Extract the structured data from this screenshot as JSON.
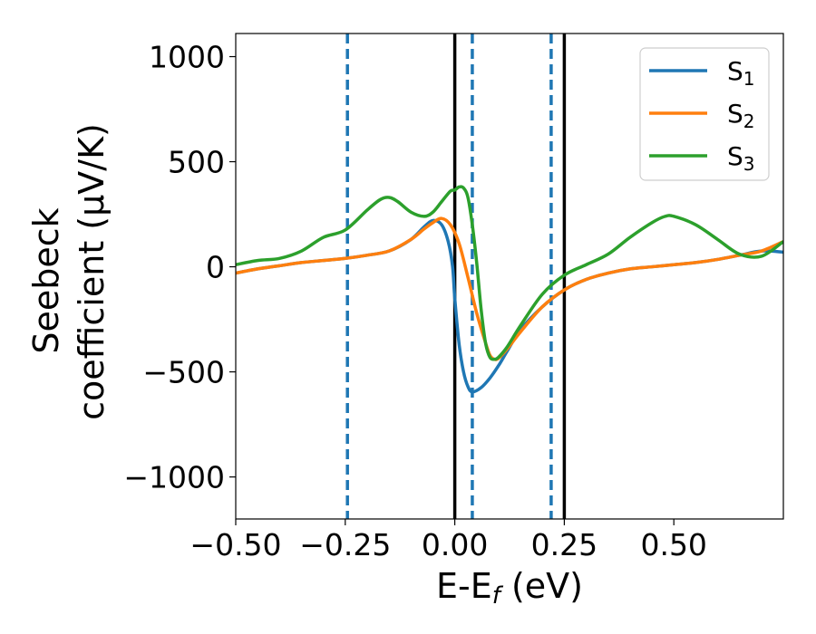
{
  "chart_data": {
    "type": "line",
    "xlabel": {
      "main": "E-E",
      "sub": "f",
      "tail": " (eV)"
    },
    "ylabel": {
      "line1": "Seebeck",
      "line2": "coefficient  (μV/K)"
    },
    "xlim": [
      -0.5,
      0.75
    ],
    "ylim": [
      -1200,
      1110
    ],
    "xticks": [
      -0.5,
      -0.25,
      0.0,
      0.25,
      0.5
    ],
    "xtick_labels": [
      "−0.50",
      "−0.25",
      "0.00",
      "0.25",
      "0.50"
    ],
    "yticks": [
      -1000,
      -500,
      0,
      500,
      1000
    ],
    "ytick_labels": [
      "−1000",
      "−500",
      "0",
      "500",
      "1000"
    ],
    "grid": false,
    "legend": {
      "placement": "top-right"
    },
    "vlines_solid": {
      "color": "#000000",
      "x": [
        0.0,
        0.25
      ]
    },
    "vlines_dashed": {
      "color": "#1f77b4",
      "x": [
        -0.245,
        0.04,
        0.22
      ]
    },
    "series": [
      {
        "name": {
          "main": "S",
          "sub": "1"
        },
        "color": "#1f77b4",
        "x": [
          -0.5,
          -0.45,
          -0.4,
          -0.35,
          -0.3,
          -0.25,
          -0.2,
          -0.15,
          -0.1,
          -0.07,
          -0.05,
          -0.03,
          -0.015,
          -0.005,
          0.0,
          0.01,
          0.02,
          0.03,
          0.04,
          0.06,
          0.08,
          0.1,
          0.12,
          0.15,
          0.2,
          0.25,
          0.3,
          0.35,
          0.4,
          0.45,
          0.5,
          0.55,
          0.6,
          0.65,
          0.7,
          0.75
        ],
        "y": [
          -30,
          -10,
          5,
          20,
          30,
          40,
          55,
          75,
          130,
          190,
          220,
          200,
          120,
          0,
          -150,
          -370,
          -500,
          -570,
          -595,
          -575,
          -530,
          -470,
          -400,
          -300,
          -190,
          -110,
          -60,
          -30,
          -10,
          0,
          10,
          20,
          35,
          55,
          75,
          70
        ]
      },
      {
        "name": {
          "main": "S",
          "sub": "2"
        },
        "color": "#ff7f0e",
        "x": [
          -0.5,
          -0.45,
          -0.4,
          -0.35,
          -0.3,
          -0.25,
          -0.2,
          -0.15,
          -0.1,
          -0.07,
          -0.05,
          -0.03,
          -0.01,
          0.01,
          0.03,
          0.05,
          0.07,
          0.08,
          0.09,
          0.1,
          0.12,
          0.15,
          0.2,
          0.25,
          0.3,
          0.35,
          0.4,
          0.45,
          0.5,
          0.55,
          0.6,
          0.65,
          0.7,
          0.75
        ],
        "y": [
          -30,
          -10,
          5,
          20,
          30,
          40,
          55,
          75,
          130,
          180,
          210,
          230,
          200,
          110,
          -50,
          -220,
          -360,
          -420,
          -440,
          -435,
          -390,
          -310,
          -190,
          -110,
          -60,
          -30,
          -10,
          0,
          10,
          20,
          35,
          55,
          75,
          120
        ]
      },
      {
        "name": {
          "main": "S",
          "sub": "3"
        },
        "color": "#2ca02c",
        "x": [
          -0.5,
          -0.45,
          -0.4,
          -0.35,
          -0.3,
          -0.25,
          -0.2,
          -0.17,
          -0.15,
          -0.13,
          -0.1,
          -0.07,
          -0.05,
          -0.03,
          -0.01,
          0.0,
          0.01,
          0.02,
          0.03,
          0.04,
          0.05,
          0.06,
          0.07,
          0.08,
          0.09,
          0.1,
          0.12,
          0.15,
          0.2,
          0.25,
          0.3,
          0.35,
          0.4,
          0.45,
          0.48,
          0.5,
          0.55,
          0.6,
          0.65,
          0.7,
          0.75
        ],
        "y": [
          10,
          30,
          40,
          75,
          140,
          175,
          270,
          320,
          330,
          310,
          260,
          240,
          260,
          310,
          360,
          365,
          380,
          375,
          330,
          200,
          20,
          -200,
          -360,
          -430,
          -440,
          -430,
          -380,
          -280,
          -130,
          -40,
          10,
          60,
          140,
          210,
          240,
          240,
          200,
          130,
          60,
          50,
          120
        ]
      }
    ]
  }
}
